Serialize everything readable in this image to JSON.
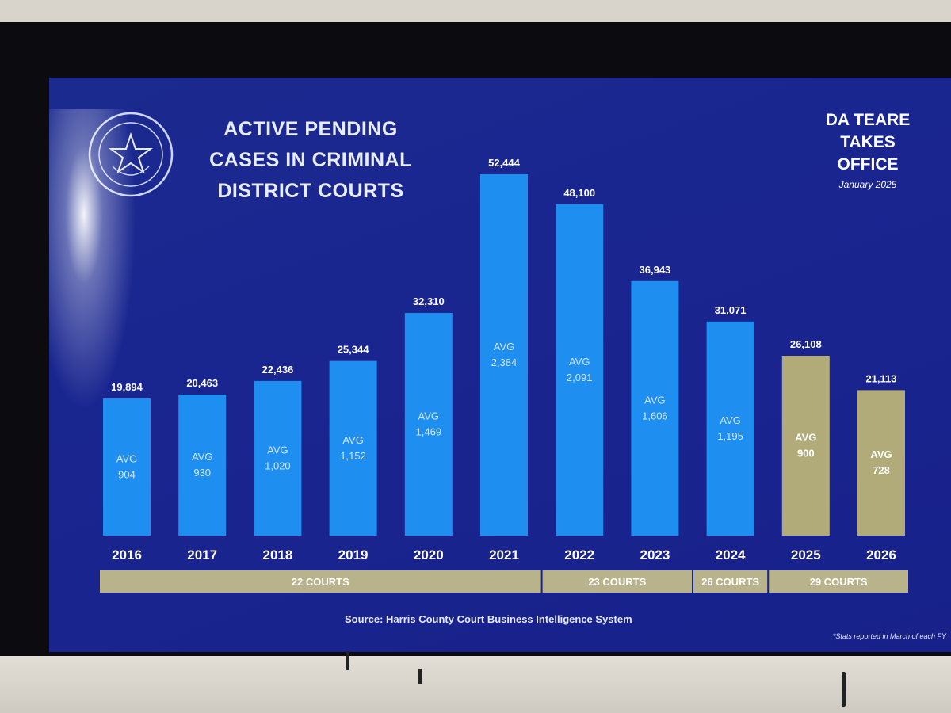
{
  "title_lines": [
    "ACTIVE PENDING",
    "CASES IN CRIMINAL",
    "DISTRICT COURTS"
  ],
  "announcement": {
    "lines": [
      "DA TEARE",
      "TAKES",
      "OFFICE"
    ],
    "date": "January 2025"
  },
  "source": "Source: Harris County Court Business Intelligence System",
  "footnote": "*Stats reported in March of each FY",
  "colors": {
    "background": "#1a2590",
    "bar_actual": "#1e8ef0",
    "bar_projected": "#b0ab78",
    "court_band": "#b8b38a",
    "text": "#e8ecff"
  },
  "chart_data": {
    "type": "bar",
    "categories": [
      "2016",
      "2017",
      "2018",
      "2019",
      "2020",
      "2021",
      "2022",
      "2023",
      "2024",
      "2025",
      "2026"
    ],
    "values": [
      19894,
      20463,
      22436,
      25344,
      32310,
      52444,
      48100,
      36943,
      31071,
      26108,
      21113
    ],
    "value_labels": [
      "19,894",
      "20,463",
      "22,436",
      "25,344",
      "32,310",
      "52,444",
      "48,100",
      "36,943",
      "31,071",
      "26,108",
      "21,113"
    ],
    "avg_label": "AVG",
    "averages": [
      "904",
      "930",
      "1,020",
      "1,152",
      "1,469",
      "2,384",
      "2,091",
      "1,606",
      "1,195",
      "900",
      "728"
    ],
    "highlight_categories": [
      "2025",
      "2026"
    ],
    "court_groups": [
      {
        "label": "22 COURTS",
        "from": "2016",
        "to": "2021"
      },
      {
        "label": "23 COURTS",
        "from": "2022",
        "to": "2023"
      },
      {
        "label": "26 COURTS",
        "from": "2024",
        "to": "2024"
      },
      {
        "label": "29 COURTS",
        "from": "2025",
        "to": "2026"
      }
    ],
    "ylim": [
      0,
      52444
    ],
    "grid": false,
    "legend": "none"
  }
}
